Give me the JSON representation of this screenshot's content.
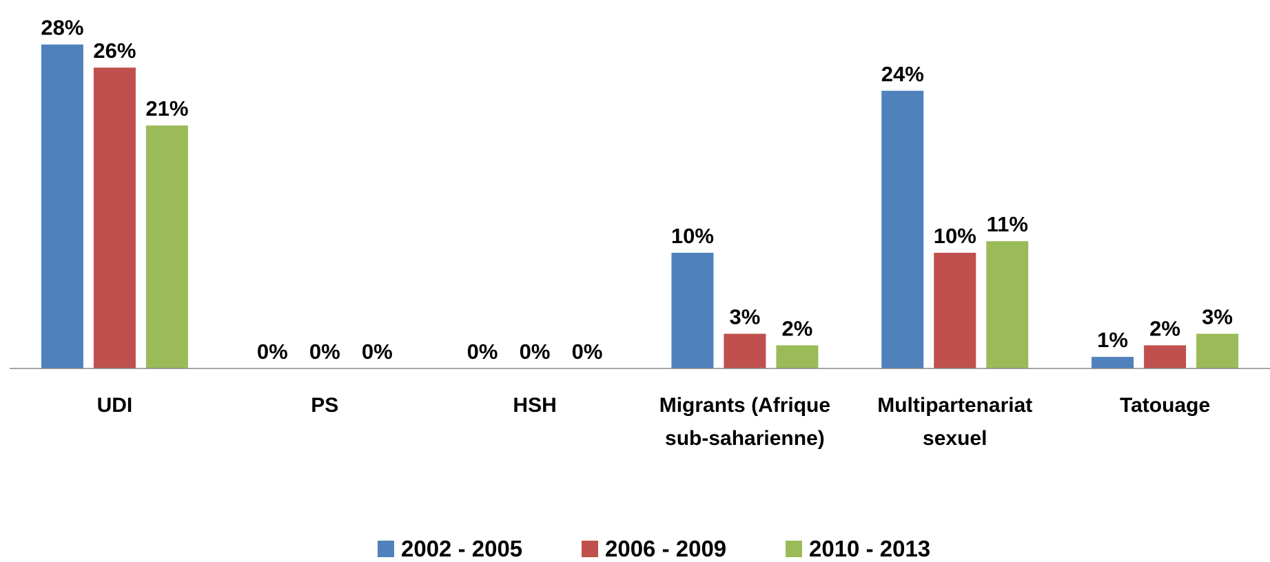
{
  "chart_data": {
    "type": "bar",
    "categories": [
      "UDI",
      "PS",
      "HSH",
      "Migrants (Afrique sub-saharienne)",
      "Multipartenariat sexuel",
      "Tatouage"
    ],
    "series": [
      {
        "name": "2002 - 2005",
        "color": "#4f81bd",
        "values": [
          28,
          0,
          0,
          10,
          24,
          1
        ],
        "value_labels": [
          "28%",
          "0%",
          "0%",
          "10%",
          "24%",
          "1%"
        ]
      },
      {
        "name": "2006 - 2009",
        "color": "#c0504d",
        "values": [
          26,
          0,
          0,
          3,
          10,
          2
        ],
        "value_labels": [
          "26%",
          "0%",
          "0%",
          "3%",
          "10%",
          "2%"
        ]
      },
      {
        "name": "2010 - 2013",
        "color": "#9bbb59",
        "values": [
          21,
          0,
          0,
          2,
          11,
          3
        ],
        "value_labels": [
          "21%",
          "0%",
          "0%",
          "2%",
          "11%",
          "3%"
        ]
      }
    ]
  }
}
